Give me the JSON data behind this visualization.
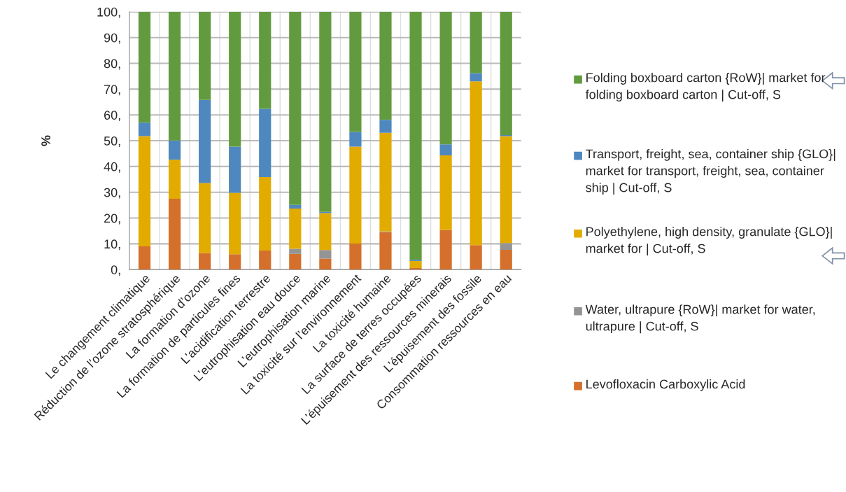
{
  "chart_data": {
    "type": "bar",
    "stacked": true,
    "ylabel": "%",
    "categories": [
      "Le changement climatique",
      "Réduction de l’ozone stratosphérique",
      "La formation d’ozone",
      "La formation de particules fines",
      "L’acidification terrestre",
      "L’eutrophisation eau douce",
      "L’eutrophisation marine",
      "La toxicité sur l’environnement",
      "La toxicité humaine",
      "La surface de terres occupées",
      "L’épuisement des ressources minerais",
      "L’épuisement des fossile",
      "Consommation ressources en eau"
    ],
    "series": [
      {
        "name": "Levofloxacin Carboxylic Acid",
        "color": "#d4702c",
        "values": [
          9.0,
          27.5,
          6.4,
          6.0,
          7.4,
          6.1,
          4.3,
          10.1,
          14.5,
          0.6,
          15.4,
          9.5,
          7.7
        ]
      },
      {
        "name": "Water, ultrapure {RoW}| market for water, ultrapure | Cut-off, S",
        "color": "#949494",
        "values": [
          0,
          0,
          0,
          0,
          0,
          2.0,
          3.3,
          0,
          0.3,
          0,
          0,
          0,
          2.6
        ]
      },
      {
        "name": "Polyethylene, high density, granulate {GLO}| market for | Cut-off, S",
        "color": "#e2ab00",
        "values": [
          42.8,
          15.1,
          27.2,
          23.8,
          28.5,
          15.6,
          14.3,
          37.6,
          38.3,
          2.7,
          28.9,
          63.5,
          41.5
        ]
      },
      {
        "name": "Transport, freight, sea, container ship {GLO}| market for transport, freight, sea, container ship | Cut-off, S",
        "color": "#4e88bf",
        "values": [
          5.2,
          7.5,
          32.2,
          17.9,
          26.5,
          1.4,
          0.5,
          5.7,
          5.0,
          0.5,
          4.3,
          3.2,
          0.4
        ]
      },
      {
        "name": "Folding boxboard carton {RoW}| market for folding boxboard carton | Cut-off, S",
        "color": "#629b3f",
        "values": [
          43.0,
          49.9,
          34.2,
          52.3,
          37.6,
          74.9,
          77.6,
          46.6,
          41.9,
          96.2,
          51.4,
          23.8,
          47.8
        ]
      }
    ],
    "ylim": [
      0,
      100
    ],
    "yticks": [
      {
        "value": 0,
        "label": "0,"
      },
      {
        "value": 10,
        "label": "10,"
      },
      {
        "value": 20,
        "label": "20,"
      },
      {
        "value": 30,
        "label": "30,"
      },
      {
        "value": 40,
        "label": "40,"
      },
      {
        "value": 50,
        "label": "50,"
      },
      {
        "value": 60,
        "label": "60,"
      },
      {
        "value": 70,
        "label": "70,"
      },
      {
        "value": 80,
        "label": "80,"
      },
      {
        "value": 90,
        "label": "90,"
      },
      {
        "value": 100,
        "label": "100,"
      }
    ],
    "grid": true,
    "legend": "right"
  }
}
